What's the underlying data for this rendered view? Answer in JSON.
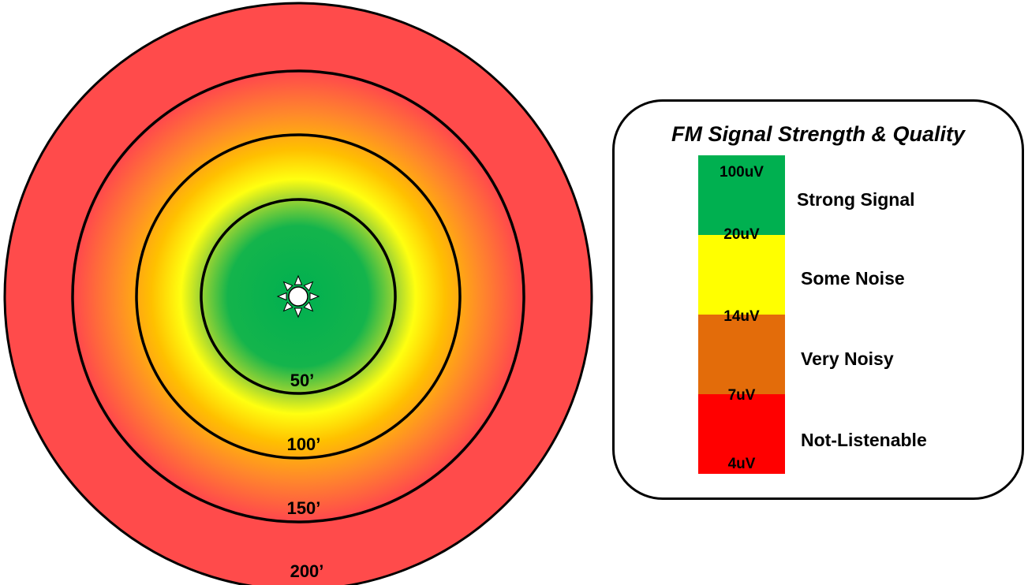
{
  "diagram": {
    "rings": [
      {
        "label": "50’",
        "color": "#00b050"
      },
      {
        "label": "100’",
        "color": "#ffff00"
      },
      {
        "label": "150’",
        "color": "#ffa500"
      },
      {
        "label": "200’",
        "color": "#ff4b4b"
      }
    ],
    "transmitter_icon": "transmitter-sun-icon"
  },
  "legend": {
    "title": "FM Signal Strength & Quality",
    "levels": [
      "100uV",
      "20uV",
      "14uV",
      "7uV",
      "4uV"
    ],
    "bands": [
      {
        "label": "Strong Signal",
        "color": "#00b050"
      },
      {
        "label": "Some Noise",
        "color": "#ffff00"
      },
      {
        "label": "Very Noisy",
        "color": "#e36c0a"
      },
      {
        "label": "Not-Listenable",
        "color": "#ff0000"
      }
    ]
  }
}
